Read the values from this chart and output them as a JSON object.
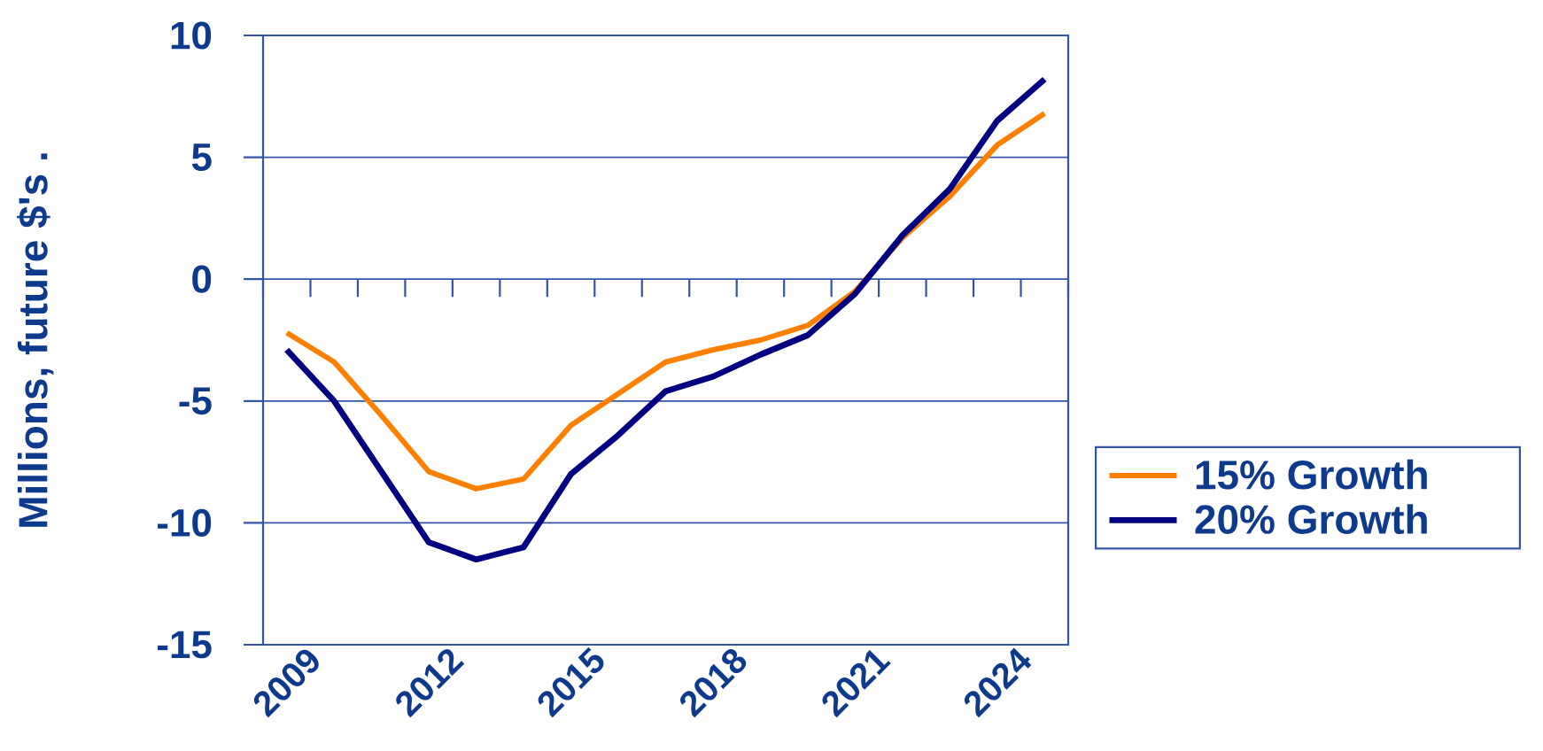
{
  "chart_data": {
    "type": "line",
    "ylabel": "Millions, future $'s .",
    "categories": [
      "2009",
      null,
      null,
      "2012",
      null,
      null,
      "2015",
      null,
      null,
      "2018",
      null,
      null,
      "2021",
      null,
      null,
      "2024",
      null
    ],
    "series": [
      {
        "name": "15% Growth",
        "color": "#ff8000",
        "values": [
          -2.2,
          -3.4,
          -5.6,
          -7.9,
          -8.6,
          -8.2,
          -6.0,
          -4.7,
          -3.4,
          -2.9,
          -2.5,
          -1.9,
          -0.5,
          1.7,
          3.4,
          5.5,
          6.8
        ]
      },
      {
        "name": "20% Growth",
        "color": "#000080",
        "values": [
          -2.9,
          -5.0,
          -7.9,
          -10.8,
          -11.5,
          -11.0,
          -8.0,
          -6.4,
          -4.6,
          -4.0,
          -3.1,
          -2.3,
          -0.6,
          1.8,
          3.7,
          6.5,
          8.2
        ]
      }
    ],
    "ylim": [
      -15,
      10
    ],
    "yticks": [
      -15,
      -10,
      -5,
      0,
      5,
      10
    ],
    "grid": "y",
    "legend": "right"
  }
}
